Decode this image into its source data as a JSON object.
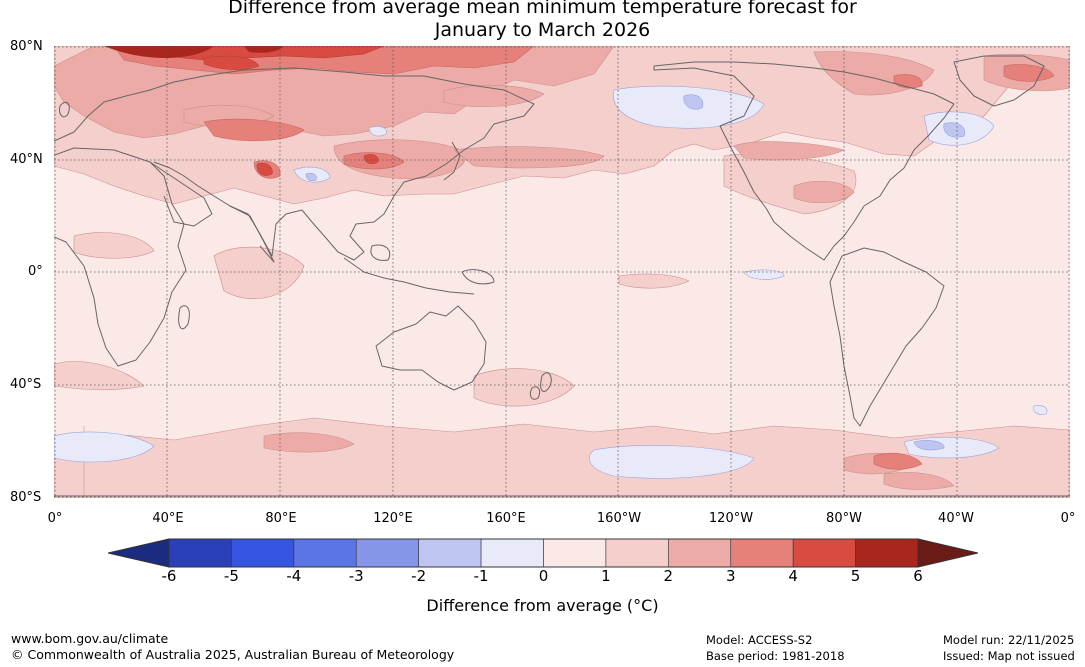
{
  "title": "Difference from average mean minimum temperature forecast for\nJanuary to March 2026",
  "map": {
    "projection": "equirectangular",
    "lat_labels": [
      "80°N",
      "40°N",
      "0°",
      "40°S",
      "80°S"
    ],
    "lon_labels": [
      "0°",
      "40°E",
      "80°E",
      "120°E",
      "160°E",
      "160°W",
      "120°W",
      "80°W",
      "40°W",
      "0°"
    ],
    "ocean_base_color": "#fbe9e8",
    "coast_color": "#666666",
    "grid_color": "#666666"
  },
  "colorbar": {
    "tick_labels": [
      "-6",
      "-5",
      "-4",
      "-3",
      "-2",
      "-1",
      "0",
      "1",
      "2",
      "3",
      "4",
      "5",
      "6"
    ],
    "colors": [
      "#1b2b80",
      "#2a3fb8",
      "#3655e0",
      "#5b76e4",
      "#8595e8",
      "#bfc5f1",
      "#e8eafa",
      "#fbe9e8",
      "#f5cfcc",
      "#ecaba6",
      "#e5807a",
      "#d84b40",
      "#a9261f",
      "#6b1b16"
    ],
    "label": "Difference from average (°C)"
  },
  "footer": {
    "website": "www.bom.gov.au/climate",
    "copyright": "© Commonwealth of Australia 2025, Australian Bureau of Meteorology",
    "model": "Model: ACCESS-S2",
    "base_period": "Base period: 1981-2018",
    "model_run": "Model run: 22/11/2025",
    "issued": "Issued: Map not issued"
  }
}
